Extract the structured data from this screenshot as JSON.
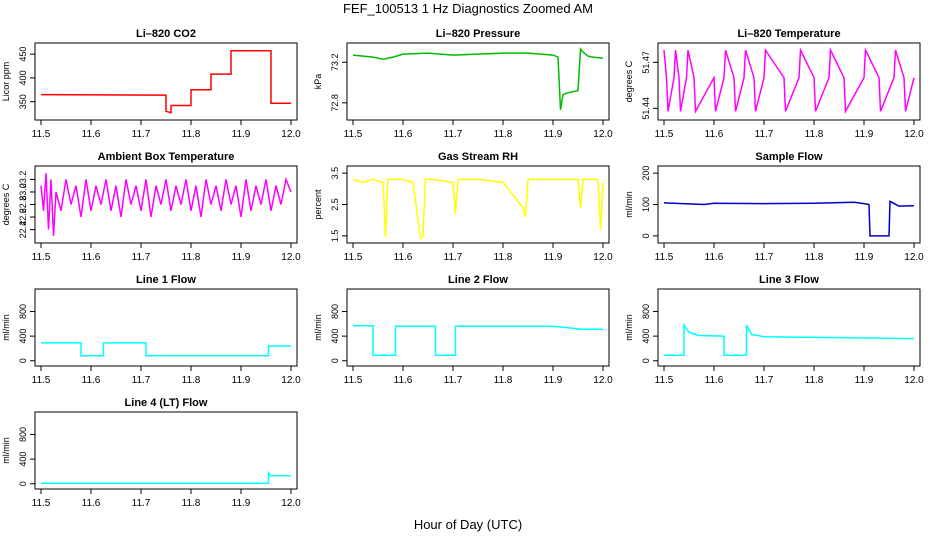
{
  "title": "FEF_100513  1 Hz Diagnostics Zoomed AM",
  "xlabel": "Hour of Day (UTC)",
  "colors": {
    "co2": "#ff0000",
    "pressure": "#00bb00",
    "temperature": "#ff00ff",
    "ambient": "#ff00ff",
    "rh": "#ffff00",
    "sample_flow": "#0000cc",
    "line_flow": "#00ffff"
  },
  "chart_data": [
    {
      "type": "line",
      "title": "Li–820 CO2",
      "ylabel": "Licor ppm",
      "color": "#ff0000",
      "xlim": [
        11.5,
        12.0
      ],
      "ylim": [
        320,
        465
      ],
      "xticks": [
        "11.5",
        "11.6",
        "11.7",
        "11.8",
        "11.9",
        "12.0"
      ],
      "yticks": [
        {
          "v": 350,
          "label": "350"
        },
        {
          "v": 400,
          "label": "400"
        },
        {
          "v": 450,
          "label": "450"
        }
      ],
      "x": [
        11.5,
        11.75,
        11.75,
        11.76,
        11.76,
        11.8,
        11.8,
        11.84,
        11.84,
        11.88,
        11.88,
        11.96,
        11.96,
        12.0
      ],
      "y": [
        365,
        364,
        330,
        327,
        342,
        342,
        375,
        375,
        408,
        408,
        457,
        457,
        347,
        347
      ]
    },
    {
      "type": "line",
      "title": "Li–820 Pressure",
      "ylabel": "kPa",
      "color": "#00bb00",
      "xlim": [
        11.5,
        12.0
      ],
      "ylim": [
        72.67,
        73.35
      ],
      "xticks": [
        "11.5",
        "11.6",
        "11.7",
        "11.8",
        "11.9",
        "12.0"
      ],
      "yticks": [
        {
          "v": 72.8,
          "label": "72.8"
        },
        {
          "v": 73.2,
          "label": "73.2"
        }
      ],
      "x": [
        11.5,
        11.52,
        11.54,
        11.56,
        11.58,
        11.6,
        11.65,
        11.7,
        11.75,
        11.8,
        11.85,
        11.9,
        11.91,
        11.915,
        11.92,
        11.93,
        11.95,
        11.955,
        11.96,
        11.97,
        11.98,
        12.0
      ],
      "y": [
        73.27,
        73.26,
        73.25,
        73.23,
        73.25,
        73.28,
        73.29,
        73.27,
        73.28,
        73.29,
        73.29,
        73.27,
        73.25,
        72.73,
        72.88,
        72.9,
        72.92,
        73.33,
        73.3,
        73.26,
        73.25,
        73.24
      ]
    },
    {
      "type": "line",
      "title": "Li–820 Temperature",
      "ylabel": "degrees C",
      "color": "#ff00ff",
      "xlim": [
        11.5,
        12.0
      ],
      "ylim": [
        51.435,
        51.48
      ],
      "xticks": [
        "11.5",
        "11.6",
        "11.7",
        "11.8",
        "11.9",
        "12.0"
      ],
      "yticks": [
        {
          "v": 51.44,
          "label": "51.44"
        },
        {
          "v": 51.47,
          "label": "51.47"
        }
      ],
      "x": [
        11.5,
        11.505,
        11.508,
        11.52,
        11.523,
        11.53,
        11.533,
        11.545,
        11.548,
        11.56,
        11.563,
        11.6,
        11.603,
        11.62,
        11.623,
        11.64,
        11.643,
        11.66,
        11.663,
        11.68,
        11.683,
        11.7,
        11.703,
        11.74,
        11.743,
        11.77,
        11.773,
        11.8,
        11.803,
        11.83,
        11.833,
        11.86,
        11.863,
        11.9,
        11.903,
        11.93,
        11.933,
        11.96,
        11.963,
        11.98,
        11.983,
        12.0
      ],
      "y": [
        51.478,
        51.46,
        51.438,
        51.46,
        51.478,
        51.46,
        51.438,
        51.46,
        51.478,
        51.46,
        51.438,
        51.46,
        51.438,
        51.46,
        51.478,
        51.46,
        51.438,
        51.46,
        51.478,
        51.46,
        51.438,
        51.46,
        51.478,
        51.46,
        51.438,
        51.46,
        51.478,
        51.46,
        51.438,
        51.46,
        51.478,
        51.46,
        51.438,
        51.46,
        51.478,
        51.46,
        51.438,
        51.46,
        51.478,
        51.46,
        51.438,
        51.46
      ]
    },
    {
      "type": "line",
      "title": "Ambient Box Temperature",
      "ylabel": "degrees C",
      "color": "#ff00ff",
      "xlim": [
        11.5,
        12.0
      ],
      "ylim": [
        22.25,
        23.35
      ],
      "xticks": [
        "11.5",
        "11.6",
        "11.7",
        "11.8",
        "11.9",
        "12.0"
      ],
      "yticks": [
        {
          "v": 22.4,
          "label": "22.4"
        },
        {
          "v": 22.6,
          "label": "22.6"
        },
        {
          "v": 22.8,
          "label": "22.8"
        },
        {
          "v": 23.0,
          "label": "23.0"
        },
        {
          "v": 23.2,
          "label": "23.2"
        }
      ],
      "x": [
        11.5,
        11.505,
        11.51,
        11.515,
        11.52,
        11.525,
        11.53,
        11.54,
        11.55,
        11.56,
        11.57,
        11.58,
        11.59,
        11.6,
        11.61,
        11.62,
        11.63,
        11.64,
        11.65,
        11.66,
        11.67,
        11.68,
        11.69,
        11.7,
        11.71,
        11.72,
        11.73,
        11.74,
        11.75,
        11.76,
        11.77,
        11.78,
        11.79,
        11.8,
        11.81,
        11.82,
        11.83,
        11.84,
        11.85,
        11.86,
        11.87,
        11.88,
        11.89,
        11.9,
        11.91,
        11.92,
        11.93,
        11.94,
        11.95,
        11.96,
        11.97,
        11.98,
        11.99,
        12.0
      ],
      "y": [
        23.1,
        22.7,
        23.3,
        22.4,
        23.2,
        22.3,
        23.0,
        22.7,
        23.2,
        22.8,
        23.1,
        22.6,
        23.2,
        22.7,
        23.1,
        22.8,
        23.2,
        22.7,
        23.1,
        22.6,
        23.2,
        22.8,
        23.1,
        22.7,
        23.2,
        22.6,
        23.1,
        22.8,
        23.2,
        22.7,
        23.1,
        22.8,
        23.2,
        22.7,
        23.1,
        22.6,
        23.2,
        22.8,
        23.1,
        22.7,
        23.2,
        22.8,
        23.1,
        22.6,
        23.2,
        22.7,
        23.1,
        22.8,
        23.2,
        22.7,
        23.1,
        22.8,
        23.2,
        23.0
      ]
    },
    {
      "type": "line",
      "title": "Gas Stream RH",
      "ylabel": "percent",
      "color": "#ffff00",
      "xlim": [
        11.5,
        12.0
      ],
      "ylim": [
        1.4,
        3.6
      ],
      "xticks": [
        "11.5",
        "11.6",
        "11.7",
        "11.8",
        "11.9",
        "12.0"
      ],
      "yticks": [
        {
          "v": 1.5,
          "label": "1.5"
        },
        {
          "v": 2.5,
          "label": "2.5"
        },
        {
          "v": 3.5,
          "label": "3.5"
        }
      ],
      "x": [
        11.5,
        11.52,
        11.54,
        11.56,
        11.565,
        11.57,
        11.6,
        11.62,
        11.635,
        11.64,
        11.645,
        11.66,
        11.7,
        11.705,
        11.71,
        11.75,
        11.8,
        11.84,
        11.845,
        11.85,
        11.9,
        11.95,
        11.955,
        11.96,
        11.99,
        11.995,
        12.0
      ],
      "y": [
        3.3,
        3.2,
        3.3,
        3.2,
        1.45,
        3.3,
        3.3,
        3.2,
        1.42,
        1.5,
        3.3,
        3.3,
        3.2,
        2.2,
        3.3,
        3.3,
        3.2,
        2.4,
        2.1,
        3.3,
        3.3,
        3.3,
        2.4,
        3.3,
        3.3,
        1.7,
        3.2
      ]
    },
    {
      "type": "line",
      "title": "Sample Flow",
      "ylabel": "ml/min",
      "color": "#0000cc",
      "xlim": [
        11.5,
        12.0
      ],
      "ylim": [
        -10,
        210
      ],
      "xticks": [
        "11.5",
        "11.6",
        "11.7",
        "11.8",
        "11.9",
        "12.0"
      ],
      "yticks": [
        {
          "v": 0,
          "label": "0"
        },
        {
          "v": 100,
          "label": "100"
        },
        {
          "v": 200,
          "label": "200"
        }
      ],
      "x": [
        11.5,
        11.55,
        11.58,
        11.6,
        11.7,
        11.8,
        11.88,
        11.9,
        11.91,
        11.912,
        11.95,
        11.952,
        11.97,
        12.0
      ],
      "y": [
        105,
        102,
        100,
        104,
        103,
        104,
        107,
        103,
        100,
        0,
        0,
        110,
        95,
        96
      ]
    },
    {
      "type": "line",
      "title": "Line 1 Flow",
      "ylabel": "ml/min",
      "color": "#00ffff",
      "xlim": [
        11.5,
        12.0
      ],
      "ylim": [
        -20,
        1100
      ],
      "xticks": [
        "11.5",
        "11.6",
        "11.7",
        "11.8",
        "11.9",
        "12.0"
      ],
      "yticks": [
        {
          "v": 0,
          "label": "0"
        },
        {
          "v": 400,
          "label": "400"
        },
        {
          "v": 800,
          "label": "800"
        }
      ],
      "x": [
        11.5,
        11.58,
        11.58,
        11.625,
        11.625,
        11.71,
        11.71,
        11.955,
        11.955,
        12.0
      ],
      "y": [
        290,
        290,
        80,
        80,
        290,
        290,
        80,
        80,
        240,
        240
      ]
    },
    {
      "type": "line",
      "title": "Line 2 Flow",
      "ylabel": "ml/min",
      "color": "#00ffff",
      "xlim": [
        11.5,
        12.0
      ],
      "ylim": [
        -20,
        1100
      ],
      "xticks": [
        "11.5",
        "11.6",
        "11.7",
        "11.8",
        "11.9",
        "12.0"
      ],
      "yticks": [
        {
          "v": 0,
          "label": "0"
        },
        {
          "v": 400,
          "label": "400"
        },
        {
          "v": 800,
          "label": "800"
        }
      ],
      "x": [
        11.5,
        11.54,
        11.54,
        11.585,
        11.585,
        11.665,
        11.665,
        11.705,
        11.705,
        11.9,
        11.96,
        12.0
      ],
      "y": [
        570,
        570,
        90,
        90,
        560,
        560,
        90,
        90,
        560,
        560,
        510,
        510
      ]
    },
    {
      "type": "line",
      "title": "Line 3 Flow",
      "ylabel": "ml/min",
      "color": "#00ffff",
      "xlim": [
        11.5,
        12.0
      ],
      "ylim": [
        -20,
        1100
      ],
      "xticks": [
        "11.5",
        "11.6",
        "11.7",
        "11.8",
        "11.9",
        "12.0"
      ],
      "yticks": [
        {
          "v": 0,
          "label": "0"
        },
        {
          "v": 400,
          "label": "400"
        },
        {
          "v": 800,
          "label": "800"
        }
      ],
      "x": [
        11.5,
        11.54,
        11.54,
        11.55,
        11.57,
        11.62,
        11.62,
        11.665,
        11.665,
        11.675,
        11.7,
        12.0
      ],
      "y": [
        90,
        90,
        580,
        460,
        410,
        400,
        90,
        90,
        580,
        430,
        390,
        360
      ]
    },
    {
      "type": "line",
      "title": "Line 4 (LT) Flow",
      "ylabel": "ml/min",
      "color": "#00ffff",
      "xlim": [
        11.5,
        12.0
      ],
      "ylim": [
        -20,
        1100
      ],
      "xticks": [
        "11.5",
        "11.6",
        "11.7",
        "11.8",
        "11.9",
        "12.0"
      ],
      "yticks": [
        {
          "v": 0,
          "label": "0"
        },
        {
          "v": 400,
          "label": "400"
        },
        {
          "v": 800,
          "label": "800"
        }
      ],
      "x": [
        11.5,
        11.7,
        11.955,
        11.955,
        11.96,
        12.0
      ],
      "y": [
        10,
        10,
        10,
        180,
        130,
        130
      ]
    }
  ]
}
